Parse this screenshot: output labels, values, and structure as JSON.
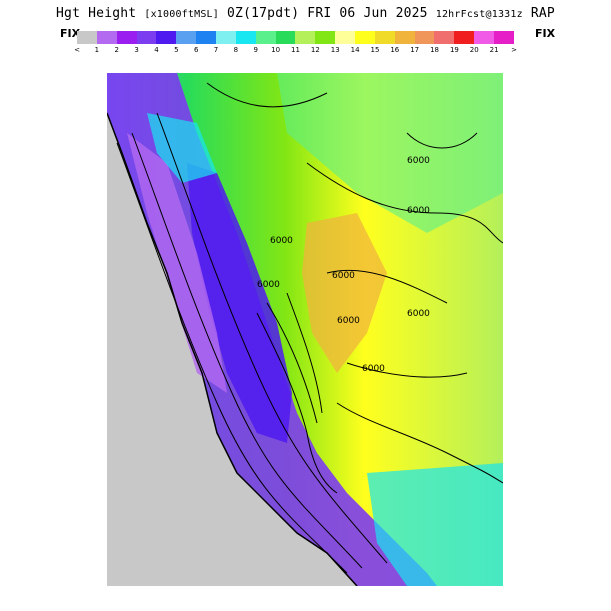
{
  "title": {
    "main": "Hgt Height",
    "units": "[x1000ftMSL]",
    "run": "0Z(17pdt) FRI 06 Jun 2025",
    "fcst": "12hrFcst@1331z",
    "model": "RAP"
  },
  "legend": {
    "fix_left": "FIX",
    "fix_right": "FIX",
    "colors": [
      "#c8c8c8",
      "#b369f0",
      "#9a1ef0",
      "#7c3cf0",
      "#4f1af0",
      "#5aa0f0",
      "#1e82f0",
      "#7ef0f0",
      "#18e6f0",
      "#5af08c",
      "#28dc5a",
      "#b4f05a",
      "#82e614",
      "#ffff9a",
      "#ffff1e",
      "#f0dc28",
      "#f0b43c",
      "#f0965a",
      "#f06e6e",
      "#f01e1e",
      "#f05ae6",
      "#e61ec8"
    ],
    "ticks": [
      "<",
      "1",
      "2",
      "3",
      "4",
      "5",
      "6",
      "7",
      "8",
      "9",
      "10",
      "11",
      "12",
      "13",
      "14",
      "15",
      "16",
      "17",
      "18",
      "19",
      "20",
      "21",
      ">"
    ]
  },
  "map_labels": [
    "6000",
    "6000",
    "6000",
    "6000",
    "6000",
    "6000",
    "6000",
    "6000"
  ]
}
